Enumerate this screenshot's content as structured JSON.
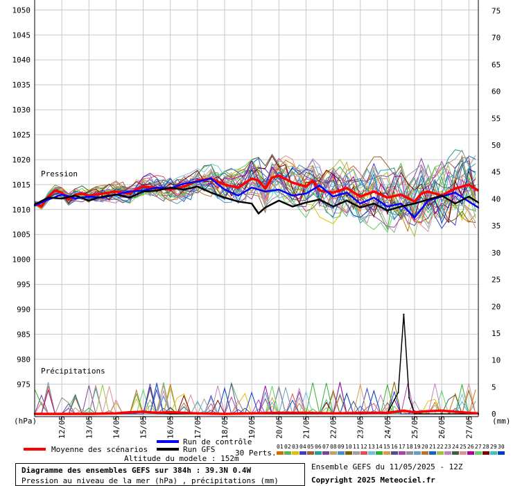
{
  "chart_data": {
    "type": "line",
    "title": "Diagramme des ensembles GEFS sur 384h : 39.3N 0.4W",
    "subtitle": "Pression au niveau de la mer (hPa) , précipitations (mm)",
    "left_axis": {
      "unit": "(hPa)",
      "ticks": [
        1050,
        1045,
        1040,
        1035,
        1030,
        1025,
        1020,
        1015,
        1010,
        1005,
        1000,
        995,
        990,
        985,
        980,
        975
      ],
      "range": [
        968.5,
        1052
      ]
    },
    "right_axis": {
      "unit": "(mm)",
      "ticks": [
        75,
        70,
        65,
        60,
        55,
        50,
        45,
        40,
        35,
        30,
        25,
        20,
        15,
        10,
        5,
        0
      ],
      "range": [
        -0.5,
        77
      ]
    },
    "x_labels": [
      "12/05",
      "13/05",
      "14/05",
      "15/05",
      "16/05",
      "17/05",
      "18/05",
      "19/05",
      "20/05",
      "21/05",
      "22/05",
      "23/05",
      "24/05",
      "25/05",
      "26/05",
      "27/05"
    ],
    "x_range": [
      11.0,
      27.35
    ],
    "labels": {
      "pressure": "Pression",
      "precip": "Précipitations"
    },
    "series": [
      {
        "name": "Moyenne des scénarios",
        "color": "#ff0000",
        "kind": "pressure_mean",
        "x": [
          11.0,
          11.25,
          11.5,
          11.75,
          12.0,
          12.25,
          12.5,
          12.75,
          13.0,
          13.5,
          14.0,
          14.25,
          14.5,
          14.75,
          15.0,
          15.5,
          16.0,
          16.5,
          17.0,
          17.5,
          18.0,
          18.5,
          19.0,
          19.25,
          19.5,
          19.75,
          20.0,
          20.5,
          21.0,
          21.25,
          21.5,
          22.0,
          22.5,
          23.0,
          23.5,
          24.0,
          24.5,
          25.0,
          25.25,
          25.5,
          26.0,
          26.5,
          27.0,
          27.35
        ],
        "values": [
          1011.2,
          1010.6,
          1012.6,
          1013.8,
          1013.4,
          1012.0,
          1013.0,
          1013.2,
          1012.8,
          1013.2,
          1013.6,
          1013.4,
          1013.2,
          1014.0,
          1014.6,
          1014.3,
          1014.0,
          1014.6,
          1015.8,
          1016.2,
          1015.0,
          1014.4,
          1016.2,
          1015.8,
          1014.2,
          1016.4,
          1016.8,
          1015.4,
          1014.6,
          1015.8,
          1013.8,
          1013.4,
          1014.3,
          1012.6,
          1013.6,
          1012.4,
          1013.0,
          1011.6,
          1013.2,
          1013.6,
          1012.8,
          1014.2,
          1015.0,
          1013.8
        ]
      },
      {
        "name": "Run de contrôle",
        "color": "#0000ff",
        "kind": "pressure",
        "x": [
          11.0,
          11.5,
          12.0,
          12.5,
          13.0,
          13.5,
          14.0,
          14.5,
          15.0,
          15.5,
          16.0,
          16.5,
          17.0,
          17.5,
          18.0,
          18.5,
          19.0,
          19.5,
          20.0,
          20.5,
          21.0,
          21.5,
          22.0,
          22.5,
          23.0,
          23.5,
          24.0,
          24.5,
          25.0,
          25.5,
          26.0,
          26.5,
          27.0,
          27.35
        ],
        "values": [
          1010.8,
          1012.0,
          1013.0,
          1012.2,
          1012.6,
          1012.4,
          1013.0,
          1013.6,
          1013.8,
          1014.4,
          1014.2,
          1015.2,
          1015.6,
          1016.2,
          1014.0,
          1012.8,
          1014.4,
          1013.6,
          1014.0,
          1012.8,
          1013.2,
          1014.8,
          1012.6,
          1013.4,
          1011.2,
          1012.4,
          1010.6,
          1011.2,
          1008.4,
          1011.8,
          1012.6,
          1013.4,
          1011.6,
          1010.4
        ]
      },
      {
        "name": "Run GFS",
        "color": "#000000",
        "kind": "pressure",
        "x": [
          11.0,
          11.5,
          12.0,
          12.5,
          13.0,
          13.5,
          14.0,
          14.5,
          15.0,
          15.5,
          16.0,
          16.5,
          17.0,
          17.5,
          18.0,
          18.5,
          19.0,
          19.25,
          19.5,
          20.0,
          20.5,
          21.0,
          21.5,
          22.0,
          22.5,
          23.0,
          23.5,
          24.0,
          24.5,
          25.0,
          25.5,
          26.0,
          26.5,
          27.0,
          27.35
        ],
        "values": [
          1011.0,
          1012.4,
          1012.2,
          1012.8,
          1011.8,
          1012.6,
          1013.0,
          1012.4,
          1013.6,
          1013.8,
          1014.4,
          1014.0,
          1014.6,
          1013.4,
          1012.4,
          1011.6,
          1011.2,
          1009.2,
          1010.4,
          1011.8,
          1010.6,
          1011.4,
          1012.0,
          1010.6,
          1011.8,
          1010.4,
          1011.2,
          1009.8,
          1010.6,
          1011.2,
          1012.0,
          1012.8,
          1011.2,
          1012.6,
          1011.4
        ]
      },
      {
        "name": "Run GFS",
        "color": "#000000",
        "kind": "precip",
        "x": [
          11.0,
          13.0,
          14.0,
          15.0,
          16.0,
          17.0,
          18.0,
          19.0,
          20.0,
          21.0,
          22.0,
          23.0,
          24.0,
          24.4,
          24.6,
          24.8,
          25.0,
          26.0,
          27.35
        ],
        "values": [
          0,
          0,
          0,
          0.5,
          0,
          0,
          0,
          0,
          0,
          0,
          0,
          0,
          0.2,
          4.0,
          18.5,
          3.0,
          0,
          0,
          0
        ]
      },
      {
        "name": "Moyenne des scénarios",
        "color": "#ff0000",
        "kind": "precip_mean",
        "x": [
          11.0,
          13.0,
          14.0,
          14.5,
          15.0,
          15.5,
          16.0,
          17.0,
          18.0,
          19.0,
          20.0,
          21.0,
          22.0,
          23.0,
          24.0,
          24.6,
          25.0,
          25.5,
          26.0,
          26.5,
          27.0,
          27.35
        ],
        "values": [
          0,
          0,
          0.1,
          0.3,
          0.4,
          0.2,
          0.3,
          0.1,
          0,
          0.1,
          0.2,
          0.2,
          0.1,
          0.2,
          0.2,
          0.6,
          0.3,
          0.5,
          0.6,
          0.4,
          0.2,
          0.1
        ]
      }
    ],
    "perturbation_count": 30,
    "perturbation_labels": [
      "01",
      "02",
      "03",
      "04",
      "05",
      "06",
      "07",
      "08",
      "09",
      "10",
      "11",
      "12",
      "13",
      "14",
      "15",
      "16",
      "17",
      "18",
      "19",
      "20",
      "21",
      "22",
      "23",
      "24",
      "25",
      "26",
      "27",
      "28",
      "29",
      "30"
    ],
    "perturbation_colors": [
      "#d07000",
      "#60b060",
      "#e0c000",
      "#4040c0",
      "#a06030",
      "#20a0a0",
      "#8040a0",
      "#c0a070",
      "#4090d0",
      "#806000",
      "#a0a0a0",
      "#e05050",
      "#70c0e0",
      "#30b030",
      "#d0a050",
      "#505090",
      "#b040b0",
      "#909090",
      "#60a0c0",
      "#c07030",
      "#2060c0",
      "#a0c040",
      "#c080c0",
      "#406040",
      "#e09090",
      "#a000a0",
      "#60d060",
      "#800000",
      "#40c0c0",
      "#0040c0"
    ],
    "grid": true
  },
  "legend": {
    "mean_label": "Moyenne des scénarios",
    "control_label": "Run de contrôle",
    "gfs_label": "Run GFS",
    "perts_label": "30 Perts.",
    "altitude": "Altitude du modele : 152m"
  },
  "footer": {
    "title": "Diagramme des ensembles GEFS sur 384h : 39.3N 0.4W",
    "subtitle": "Pression au niveau de la mer (hPa) , précipitations (mm)",
    "ensemble": "Ensemble GEFS du 11/05/2025 - 12Z",
    "copyright": "Copyright 2025 Meteociel.fr"
  },
  "colors": {
    "mean": "#ff0000",
    "control": "#0000ff",
    "gfs": "#000000",
    "grid": "#c8c8c8"
  }
}
